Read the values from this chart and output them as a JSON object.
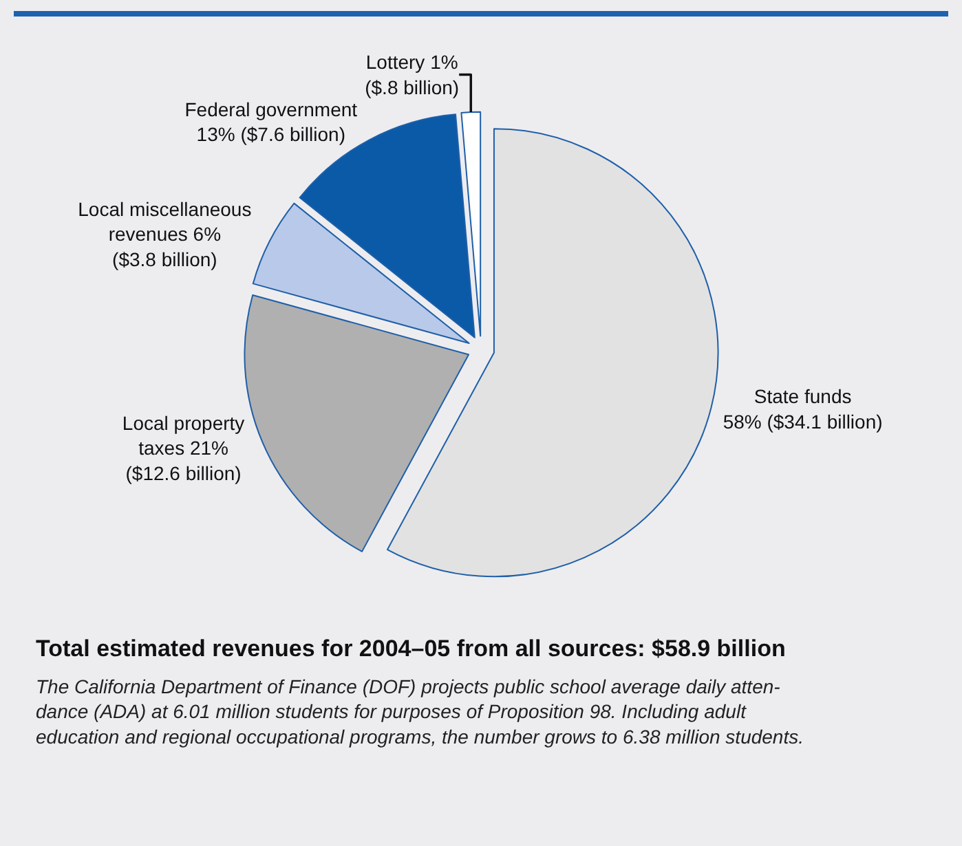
{
  "chart_data": {
    "type": "pie",
    "title": "Total estimated revenues for 2004–05 from all sources: $58.9 billion",
    "annotations": [
      "The California Department of Finance (DOF) projects public school average daily atten-\ndance (ADA) at 6.01 million students for purposes of Proposition 98. Including adult\neducation and regional occupational programs, the number grows to 6.38 million students."
    ],
    "categories": [
      "State funds\n58% ($34.1 billion)",
      "Local property\ntaxes 21%\n($12.6 billion)",
      "Local miscellaneous\nrevenues 6%\n($3.8 billion)",
      "Federal government\n13% ($7.6 billion)",
      "Lottery 1%\n($.8 billion)"
    ],
    "values": [
      34.1,
      12.6,
      3.8,
      7.6,
      0.8
    ],
    "colors": [
      "#e2e2e2",
      "#b0b0b0",
      "#b9c9e9",
      "#0b5aa8",
      "#ffffff"
    ],
    "legend": false
  }
}
